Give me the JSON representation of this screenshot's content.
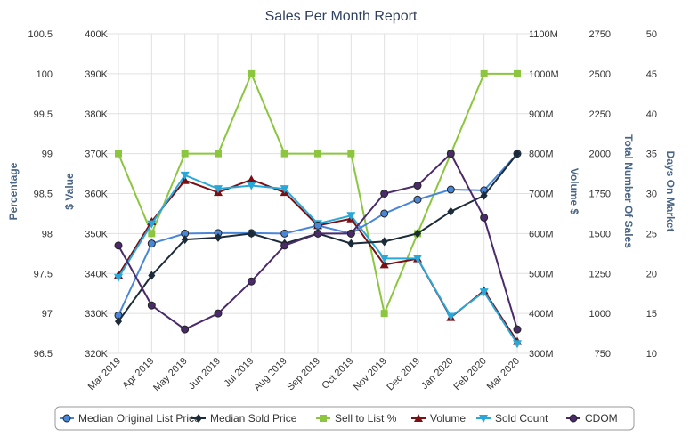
{
  "chart_data": {
    "type": "line",
    "title": "Sales Per Month Report",
    "categories": [
      "Mar 2019",
      "Apr 2019",
      "May 2019",
      "Jun 2019",
      "Jul 2019",
      "Aug 2019",
      "Sep 2019",
      "Oct 2019",
      "Nov 2019",
      "Dec 2019",
      "Jan 2020",
      "Feb 2020",
      "Mar 2020"
    ],
    "axes": {
      "percentage": {
        "label": "Percentage",
        "ylim": [
          96.5,
          100.5
        ],
        "ticks": [
          "96.5",
          "97",
          "97.5",
          "98",
          "98.5",
          "99",
          "99.5",
          "100",
          "100.5"
        ]
      },
      "value": {
        "label": "$ Value",
        "ylim": [
          320000,
          400000
        ],
        "ticks": [
          "320K",
          "330K",
          "340K",
          "350K",
          "360K",
          "370K",
          "380K",
          "390K",
          "400K"
        ]
      },
      "volume": {
        "label": "Volume $",
        "ylim": [
          300,
          1100
        ],
        "ticks": [
          "300M",
          "400M",
          "500M",
          "600M",
          "700M",
          "800M",
          "900M",
          "1000M",
          "1100M"
        ]
      },
      "count": {
        "label": "Total Number Of Sales",
        "ylim": [
          750,
          2750
        ],
        "ticks": [
          "750",
          "1000",
          "1250",
          "1500",
          "1750",
          "2000",
          "2250",
          "2500",
          "2750"
        ]
      },
      "days": {
        "label": "Days On Market",
        "ylim": [
          10,
          50
        ],
        "ticks": [
          "10",
          "15",
          "20",
          "25",
          "30",
          "35",
          "40",
          "45",
          "50"
        ]
      }
    },
    "series": [
      {
        "name": "Median Original List Price",
        "axis": "value",
        "color": "#4a86d8",
        "marker": "circle",
        "values": [
          329500,
          347500,
          350000,
          350100,
          350100,
          350000,
          352000,
          350000,
          355000,
          358500,
          361000,
          360800,
          370000
        ]
      },
      {
        "name": "Median Sold Price",
        "axis": "value",
        "color": "#1c2b3a",
        "marker": "diamond",
        "values": [
          328000,
          339500,
          348500,
          349000,
          350000,
          347500,
          350000,
          347500,
          348000,
          350000,
          355500,
          359500,
          370000
        ]
      },
      {
        "name": "Sell to List %",
        "axis": "percentage",
        "color": "#8cc63f",
        "marker": "square",
        "values": [
          99,
          98,
          99,
          99,
          100,
          99,
          99,
          99,
          97,
          98,
          99,
          100,
          100
        ]
      },
      {
        "name": "Volume",
        "axis": "volume",
        "color": "#7a0f14",
        "marker": "triangle",
        "values": [
          496,
          630,
          733,
          703,
          735,
          703,
          620,
          637,
          522,
          537,
          390,
          457,
          330
        ]
      },
      {
        "name": "Sold Count",
        "axis": "count",
        "color": "#29a8d8",
        "marker": "triangle-down",
        "values": [
          1224,
          1560,
          1865,
          1780,
          1800,
          1780,
          1562,
          1612,
          1344,
          1344,
          981,
          1134,
          810
        ]
      },
      {
        "name": "CDOM",
        "axis": "days",
        "color": "#4a2a6a",
        "marker": "circle",
        "values": [
          23.5,
          16,
          13,
          15,
          19,
          23.5,
          25,
          25,
          30,
          31,
          35,
          27,
          13
        ]
      }
    ],
    "legend_position": "bottom",
    "grid": true
  }
}
